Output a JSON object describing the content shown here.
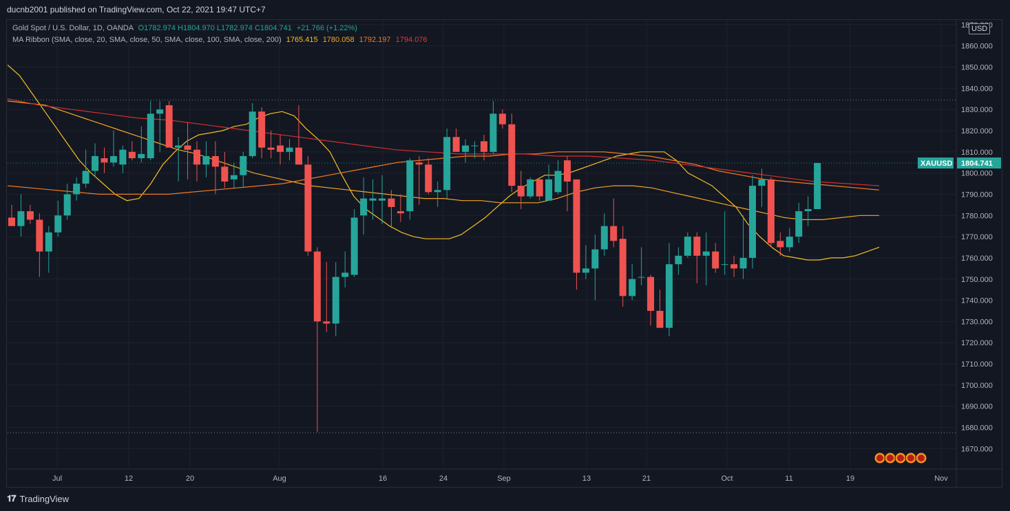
{
  "header": {
    "published_text": "ducnb2001 published on TradingView.com, Oct 22, 2021 19:47 UTC+7"
  },
  "legend": {
    "symbol_line": "Gold Spot / U.S. Dollar, 1D, OANDA",
    "o": "O1782.974",
    "h": "H1804.970",
    "l": "L1782.974",
    "c": "C1804.741",
    "change": "+21.766 (+1.22%)",
    "ma_line": "MA Ribbon (SMA, close, 20, SMA, close, 50, SMA, close, 100, SMA, close, 200)",
    "ma_values": [
      "1765.415",
      "1780.058",
      "1792.197",
      "1794.076"
    ]
  },
  "price_axis": {
    "currency": "USD",
    "ticks": [
      "1870.000",
      "1860.000",
      "1850.000",
      "1840.000",
      "1830.000",
      "1820.000",
      "1810.000",
      "1800.000",
      "1790.000",
      "1780.000",
      "1770.000",
      "1760.000",
      "1750.000",
      "1740.000",
      "1730.000",
      "1720.000",
      "1710.000",
      "1700.000",
      "1690.000",
      "1680.000",
      "1670.000"
    ]
  },
  "time_axis": {
    "labels": [
      "Jul",
      "12",
      "20",
      "Aug",
      "16",
      "24",
      "Sep",
      "13",
      "21",
      "Oct",
      "11",
      "19",
      "Nov"
    ]
  },
  "price_label": {
    "symbol": "XAUUSD",
    "value": "1804.741"
  },
  "footer": {
    "brand": "TradingView"
  },
  "colors": {
    "up": "#26a69a",
    "down": "#ef5350",
    "background": "#131722",
    "grid": "#1e222d",
    "ma20": "#f6c026",
    "ma50": "#f5a623",
    "ma100": "#f57c20",
    "ma200": "#d32f2f"
  },
  "chart_data": {
    "type": "candlestick",
    "symbol": "XAUUSD",
    "timeframe": "1D",
    "y_range": [
      1663,
      1873
    ],
    "candles": [
      {
        "o": 1779,
        "h": 1785,
        "l": 1776,
        "c": 1775
      },
      {
        "o": 1775,
        "h": 1790,
        "l": 1770,
        "c": 1782
      },
      {
        "o": 1782,
        "h": 1785,
        "l": 1776,
        "c": 1778
      },
      {
        "o": 1778,
        "h": 1781,
        "l": 1751,
        "c": 1763
      },
      {
        "o": 1763,
        "h": 1775,
        "l": 1753,
        "c": 1772
      },
      {
        "o": 1772,
        "h": 1787,
        "l": 1770,
        "c": 1780
      },
      {
        "o": 1780,
        "h": 1795,
        "l": 1778,
        "c": 1790
      },
      {
        "o": 1790,
        "h": 1798,
        "l": 1787,
        "c": 1795
      },
      {
        "o": 1795,
        "h": 1811,
        "l": 1793,
        "c": 1801
      },
      {
        "o": 1801,
        "h": 1814,
        "l": 1798,
        "c": 1808
      },
      {
        "o": 1807,
        "h": 1812,
        "l": 1800,
        "c": 1805
      },
      {
        "o": 1805,
        "h": 1820,
        "l": 1803,
        "c": 1808
      },
      {
        "o": 1804,
        "h": 1813,
        "l": 1800,
        "c": 1811
      },
      {
        "o": 1810,
        "h": 1815,
        "l": 1806,
        "c": 1807
      },
      {
        "o": 1807,
        "h": 1822,
        "l": 1805,
        "c": 1809
      },
      {
        "o": 1807,
        "h": 1834,
        "l": 1806,
        "c": 1828
      },
      {
        "o": 1828,
        "h": 1834,
        "l": 1810,
        "c": 1830
      },
      {
        "o": 1832,
        "h": 1834,
        "l": 1814,
        "c": 1812
      },
      {
        "o": 1812,
        "h": 1817,
        "l": 1796,
        "c": 1813
      },
      {
        "o": 1813,
        "h": 1824,
        "l": 1797,
        "c": 1811
      },
      {
        "o": 1811,
        "h": 1815,
        "l": 1796,
        "c": 1804
      },
      {
        "o": 1804,
        "h": 1815,
        "l": 1798,
        "c": 1808
      },
      {
        "o": 1808,
        "h": 1815,
        "l": 1790,
        "c": 1803
      },
      {
        "o": 1803,
        "h": 1810,
        "l": 1793,
        "c": 1796
      },
      {
        "o": 1797,
        "h": 1805,
        "l": 1793,
        "c": 1799
      },
      {
        "o": 1799,
        "h": 1810,
        "l": 1793,
        "c": 1808
      },
      {
        "o": 1808,
        "h": 1833,
        "l": 1807,
        "c": 1829
      },
      {
        "o": 1829,
        "h": 1831,
        "l": 1807,
        "c": 1812
      },
      {
        "o": 1812,
        "h": 1820,
        "l": 1807,
        "c": 1811
      },
      {
        "o": 1813,
        "h": 1818,
        "l": 1804,
        "c": 1810
      },
      {
        "o": 1810,
        "h": 1816,
        "l": 1806,
        "c": 1812
      },
      {
        "o": 1812,
        "h": 1832,
        "l": 1804,
        "c": 1804
      },
      {
        "o": 1804,
        "h": 1808,
        "l": 1761,
        "c": 1763
      },
      {
        "o": 1763,
        "h": 1765,
        "l": 1678,
        "c": 1730
      },
      {
        "o": 1730,
        "h": 1758,
        "l": 1725,
        "c": 1729
      },
      {
        "o": 1729,
        "h": 1758,
        "l": 1723,
        "c": 1751
      },
      {
        "o": 1751,
        "h": 1763,
        "l": 1746,
        "c": 1753
      },
      {
        "o": 1752,
        "h": 1783,
        "l": 1751,
        "c": 1779
      },
      {
        "o": 1780,
        "h": 1798,
        "l": 1771,
        "c": 1788
      },
      {
        "o": 1787,
        "h": 1797,
        "l": 1778,
        "c": 1788
      },
      {
        "o": 1787,
        "h": 1799,
        "l": 1776,
        "c": 1788
      },
      {
        "o": 1788,
        "h": 1792,
        "l": 1774,
        "c": 1784
      },
      {
        "o": 1782,
        "h": 1790,
        "l": 1777,
        "c": 1781
      },
      {
        "o": 1782,
        "h": 1807,
        "l": 1778,
        "c": 1806
      },
      {
        "o": 1805,
        "h": 1808,
        "l": 1785,
        "c": 1804
      },
      {
        "o": 1804,
        "h": 1807,
        "l": 1790,
        "c": 1791
      },
      {
        "o": 1791,
        "h": 1796,
        "l": 1784,
        "c": 1792
      },
      {
        "o": 1792,
        "h": 1821,
        "l": 1788,
        "c": 1817
      },
      {
        "o": 1817,
        "h": 1821,
        "l": 1810,
        "c": 1810
      },
      {
        "o": 1810,
        "h": 1816,
        "l": 1805,
        "c": 1813
      },
      {
        "o": 1813,
        "h": 1815,
        "l": 1807,
        "c": 1813
      },
      {
        "o": 1815,
        "h": 1818,
        "l": 1806,
        "c": 1810
      },
      {
        "o": 1810,
        "h": 1834,
        "l": 1809,
        "c": 1828
      },
      {
        "o": 1828,
        "h": 1830,
        "l": 1821,
        "c": 1823
      },
      {
        "o": 1823,
        "h": 1828,
        "l": 1791,
        "c": 1794
      },
      {
        "o": 1794,
        "h": 1801,
        "l": 1783,
        "c": 1789
      },
      {
        "o": 1789,
        "h": 1798,
        "l": 1788,
        "c": 1797
      },
      {
        "o": 1797,
        "h": 1798,
        "l": 1787,
        "c": 1789
      },
      {
        "o": 1787,
        "h": 1804,
        "l": 1787,
        "c": 1797
      },
      {
        "o": 1791,
        "h": 1806,
        "l": 1790,
        "c": 1801
      },
      {
        "o": 1806,
        "h": 1808,
        "l": 1782,
        "c": 1796
      },
      {
        "o": 1797,
        "h": 1797,
        "l": 1745,
        "c": 1753
      },
      {
        "o": 1753,
        "h": 1766,
        "l": 1750,
        "c": 1755
      },
      {
        "o": 1755,
        "h": 1771,
        "l": 1740,
        "c": 1764
      },
      {
        "o": 1764,
        "h": 1781,
        "l": 1761,
        "c": 1775
      },
      {
        "o": 1775,
        "h": 1788,
        "l": 1765,
        "c": 1768
      },
      {
        "o": 1769,
        "h": 1775,
        "l": 1737,
        "c": 1742
      },
      {
        "o": 1742,
        "h": 1757,
        "l": 1740,
        "c": 1750
      },
      {
        "o": 1751,
        "h": 1765,
        "l": 1747,
        "c": 1751
      },
      {
        "o": 1751,
        "h": 1752,
        "l": 1728,
        "c": 1735
      },
      {
        "o": 1735,
        "h": 1745,
        "l": 1727,
        "c": 1727
      },
      {
        "o": 1727,
        "h": 1767,
        "l": 1723,
        "c": 1757
      },
      {
        "o": 1757,
        "h": 1765,
        "l": 1752,
        "c": 1761
      },
      {
        "o": 1761,
        "h": 1772,
        "l": 1760,
        "c": 1770
      },
      {
        "o": 1770,
        "h": 1772,
        "l": 1748,
        "c": 1761
      },
      {
        "o": 1761,
        "h": 1772,
        "l": 1747,
        "c": 1763
      },
      {
        "o": 1763,
        "h": 1767,
        "l": 1753,
        "c": 1755
      },
      {
        "o": 1757,
        "h": 1782,
        "l": 1752,
        "c": 1757
      },
      {
        "o": 1757,
        "h": 1761,
        "l": 1751,
        "c": 1755
      },
      {
        "o": 1755,
        "h": 1780,
        "l": 1750,
        "c": 1760
      },
      {
        "o": 1760,
        "h": 1799,
        "l": 1755,
        "c": 1794
      },
      {
        "o": 1794,
        "h": 1802,
        "l": 1784,
        "c": 1797
      },
      {
        "o": 1797,
        "h": 1798,
        "l": 1765,
        "c": 1767
      },
      {
        "o": 1768,
        "h": 1772,
        "l": 1761,
        "c": 1765
      },
      {
        "o": 1765,
        "h": 1774,
        "l": 1763,
        "c": 1770
      },
      {
        "o": 1770,
        "h": 1786,
        "l": 1767,
        "c": 1782
      },
      {
        "o": 1782,
        "h": 1789,
        "l": 1775,
        "c": 1783
      },
      {
        "o": 1783,
        "h": 1805,
        "l": 1783,
        "c": 1804.741
      }
    ],
    "moving_averages": [
      {
        "name": "SMA 20",
        "color": "#f6c026",
        "values": [
          1851,
          1846,
          1838,
          1830,
          1822,
          1814,
          1806,
          1800,
          1795,
          1790,
          1787,
          1788,
          1795,
          1804,
          1810,
          1815,
          1818,
          1819,
          1820,
          1822,
          1823,
          1826,
          1828,
          1829,
          1827,
          1821,
          1816,
          1810,
          1799,
          1789,
          1783,
          1779,
          1775,
          1772,
          1770,
          1769,
          1769,
          1769,
          1771,
          1775,
          1779,
          1784,
          1789,
          1793,
          1796,
          1799,
          1799,
          1800,
          1802,
          1804,
          1806,
          1808,
          1809,
          1810,
          1810,
          1810,
          1806,
          1800,
          1797,
          1794,
          1789,
          1784,
          1776,
          1770,
          1765,
          1761,
          1760,
          1759,
          1759,
          1760,
          1760,
          1761,
          1763,
          1765
        ]
      },
      {
        "name": "SMA 50",
        "color": "#f5a623",
        "values": [
          1834,
          1833,
          1832,
          1829,
          1826,
          1823,
          1820,
          1817,
          1814,
          1811,
          1809,
          1806,
          1803,
          1800,
          1798,
          1796,
          1794,
          1793,
          1792,
          1791,
          1790,
          1789,
          1788,
          1788,
          1787,
          1787,
          1786,
          1786,
          1786,
          1788,
          1791,
          1793,
          1794,
          1794,
          1793,
          1791,
          1789,
          1787,
          1785,
          1783,
          1781,
          1779,
          1778,
          1778,
          1779,
          1780,
          1780
        ]
      },
      {
        "name": "SMA 100",
        "color": "#f57c20",
        "values": [
          1794,
          1793,
          1792,
          1791,
          1790,
          1790,
          1790,
          1790,
          1791,
          1792,
          1793,
          1794,
          1795,
          1797,
          1799,
          1801,
          1803,
          1805,
          1806,
          1807,
          1808,
          1808,
          1809,
          1809,
          1810,
          1810,
          1810,
          1809,
          1808,
          1806,
          1804,
          1801,
          1799,
          1797,
          1796,
          1795,
          1794,
          1793,
          1792
        ]
      },
      {
        "name": "SMA 200",
        "color": "#d32f2f",
        "values": [
          1835,
          1832,
          1830,
          1828,
          1826,
          1825,
          1823,
          1821,
          1819,
          1817,
          1815,
          1813,
          1811,
          1810,
          1809,
          1809,
          1809,
          1808,
          1808,
          1807,
          1806,
          1804,
          1802,
          1800,
          1798,
          1796,
          1795,
          1794
        ]
      }
    ],
    "horizontal_lines": [
      1834.5,
      1677.5,
      1804.741
    ]
  }
}
